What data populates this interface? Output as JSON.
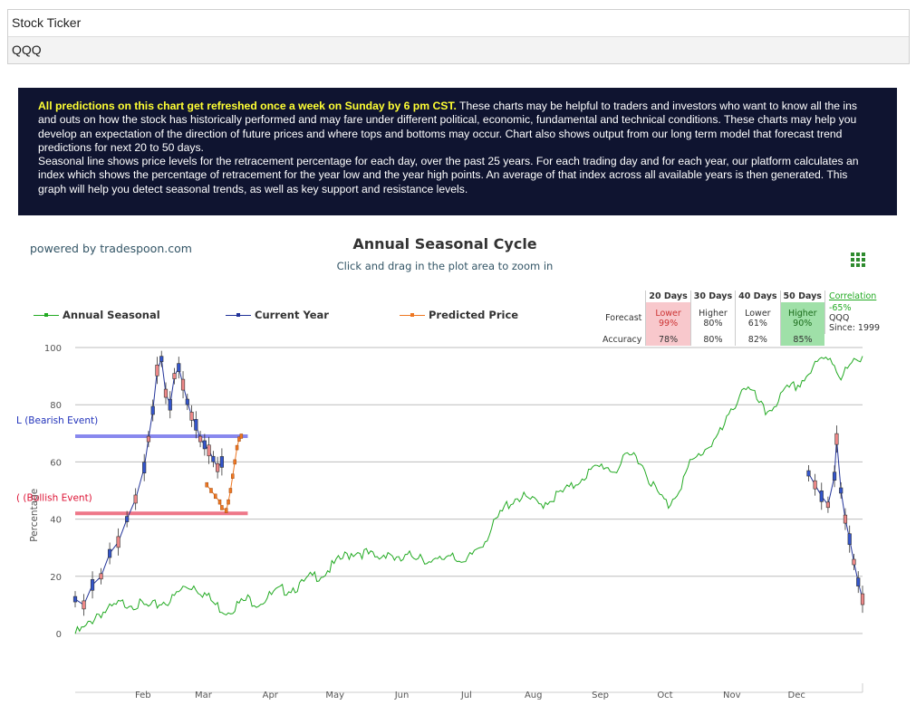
{
  "ticker": {
    "label": "Stock Ticker",
    "value": "QQQ"
  },
  "info": {
    "highlight": "All predictions on this chart get refreshed once a week on Sunday by 6 pm CST.",
    "text1": " These charts may be helpful to traders and investors who want to know all the ins and outs on how the stock has historically performed and may fare under different political, economic, fundamental and technical conditions. These charts may help you develop an expectation of the direction of future prices and where tops and bottoms may occur. Chart also shows output from our long term model that forecast trend predictions for next 20 to 50 days.",
    "text2": "Seasonal line shows price levels for the retracement percentage for each day, over the past 25 years. For each trading day and for each year, our platform calculates an index which shows the percentage of retracement for the year low and the year high points. An average of that index across all available years is then generated. This graph will help you detect seasonal trends, as well as key support and resistance levels."
  },
  "powered_by": "powered by tradespoon.com",
  "chart_data": {
    "type": "line",
    "title": "Annual Seasonal Cycle",
    "subtitle": "Click and drag in the plot area to zoom in",
    "ylabel": "Percentage",
    "ylim": [
      0,
      100
    ],
    "yticks": [
      0,
      20,
      40,
      60,
      80,
      100
    ],
    "xlim": [
      0,
      365
    ],
    "xticks": [
      {
        "label": "Feb",
        "day": 31
      },
      {
        "label": "Mar",
        "day": 59
      },
      {
        "label": "Apr",
        "day": 90
      },
      {
        "label": "May",
        "day": 120
      },
      {
        "label": "Jun",
        "day": 151
      },
      {
        "label": "Jul",
        "day": 181
      },
      {
        "label": "Aug",
        "day": 212
      },
      {
        "label": "Sep",
        "day": 243
      },
      {
        "label": "Oct",
        "day": 273
      },
      {
        "label": "Nov",
        "day": 304
      },
      {
        "label": "Dec",
        "day": 334
      }
    ],
    "legend": {
      "placement": "top",
      "items": [
        {
          "name": "Annual Seasonal",
          "color": "#22aa22"
        },
        {
          "name": "Current Year",
          "color": "#223399"
        },
        {
          "name": "Predicted Price",
          "color": "#ee7722"
        }
      ]
    },
    "plot_lines": [
      {
        "label": "L (Bearish Event)",
        "value": 69,
        "color": "#8888ee",
        "label_color": "#2233bb",
        "x_range": [
          0,
          80
        ]
      },
      {
        "label": "( (Bullish Event)",
        "value": 42,
        "color": "#ee7788",
        "label_color": "#dd1133",
        "x_range": [
          0,
          80
        ]
      }
    ],
    "series": [
      {
        "name": "Annual Seasonal",
        "color": "#22aa22",
        "points": [
          [
            0,
            1
          ],
          [
            5,
            3
          ],
          [
            10,
            8
          ],
          [
            15,
            9
          ],
          [
            20,
            11
          ],
          [
            25,
            12
          ],
          [
            30,
            11
          ],
          [
            35,
            10
          ],
          [
            40,
            12
          ],
          [
            45,
            13
          ],
          [
            50,
            17
          ],
          [
            55,
            18
          ],
          [
            60,
            15
          ],
          [
            65,
            11
          ],
          [
            70,
            9
          ],
          [
            75,
            11
          ],
          [
            80,
            13
          ],
          [
            85,
            12
          ],
          [
            90,
            14
          ],
          [
            95,
            16
          ],
          [
            100,
            17
          ],
          [
            105,
            18
          ],
          [
            110,
            21
          ],
          [
            115,
            22
          ],
          [
            120,
            25
          ],
          [
            125,
            28
          ],
          [
            130,
            30
          ],
          [
            135,
            29
          ],
          [
            140,
            27
          ],
          [
            145,
            30
          ],
          [
            150,
            26
          ],
          [
            155,
            28
          ],
          [
            160,
            29
          ],
          [
            165,
            25
          ],
          [
            170,
            27
          ],
          [
            175,
            30
          ],
          [
            180,
            24
          ],
          [
            185,
            30
          ],
          [
            190,
            34
          ],
          [
            195,
            40
          ],
          [
            200,
            46
          ],
          [
            205,
            49
          ],
          [
            210,
            48
          ],
          [
            215,
            46
          ],
          [
            220,
            48
          ],
          [
            225,
            50
          ],
          [
            230,
            52
          ],
          [
            235,
            56
          ],
          [
            240,
            58
          ],
          [
            245,
            60
          ],
          [
            250,
            58
          ],
          [
            255,
            62
          ],
          [
            260,
            64
          ],
          [
            265,
            57
          ],
          [
            270,
            50
          ],
          [
            275,
            46
          ],
          [
            280,
            52
          ],
          [
            285,
            60
          ],
          [
            290,
            64
          ],
          [
            295,
            68
          ],
          [
            300,
            72
          ],
          [
            305,
            80
          ],
          [
            310,
            88
          ],
          [
            315,
            84
          ],
          [
            320,
            78
          ],
          [
            325,
            82
          ],
          [
            330,
            86
          ],
          [
            335,
            88
          ],
          [
            340,
            92
          ],
          [
            345,
            96
          ],
          [
            350,
            98
          ],
          [
            355,
            91
          ],
          [
            360,
            95
          ],
          [
            365,
            97
          ]
        ]
      },
      {
        "name": "Current Year",
        "color": "#223399",
        "segments": [
          [
            [
              0,
              12
            ],
            [
              4,
              10
            ],
            [
              8,
              17
            ],
            [
              12,
              20
            ],
            [
              16,
              28
            ],
            [
              20,
              32
            ],
            [
              24,
              40
            ],
            [
              28,
              47
            ],
            [
              32,
              58
            ],
            [
              34,
              68
            ],
            [
              36,
              78
            ],
            [
              38,
              92
            ],
            [
              40,
              96
            ],
            [
              42,
              84
            ],
            [
              44,
              80
            ],
            [
              46,
              90
            ],
            [
              48,
              93
            ],
            [
              50,
              87
            ],
            [
              52,
              81
            ],
            [
              54,
              76
            ],
            [
              56,
              73
            ],
            [
              58,
              68
            ],
            [
              60,
              66
            ],
            [
              62,
              64
            ],
            [
              64,
              61
            ],
            [
              66,
              58
            ],
            [
              68,
              60
            ]
          ],
          [
            [
              340,
              56
            ],
            [
              343,
              52
            ],
            [
              346,
              48
            ],
            [
              349,
              45
            ],
            [
              352,
              55
            ],
            [
              353,
              68
            ],
            [
              355,
              50
            ],
            [
              357,
              40
            ],
            [
              359,
              33
            ],
            [
              361,
              25
            ],
            [
              363,
              18
            ],
            [
              365,
              12
            ]
          ]
        ]
      },
      {
        "name": "Predicted Price",
        "color": "#ee7722",
        "points": [
          [
            61,
            52
          ],
          [
            63,
            50
          ],
          [
            65,
            48
          ],
          [
            67,
            46
          ],
          [
            68,
            44
          ],
          [
            70,
            43
          ],
          [
            71,
            46
          ],
          [
            72,
            50
          ],
          [
            73,
            55
          ],
          [
            74,
            60
          ],
          [
            75,
            65
          ],
          [
            76,
            68
          ],
          [
            77,
            69
          ]
        ]
      }
    ]
  },
  "forecast_table": {
    "headers": [
      "20 Days",
      "30 Days",
      "40 Days",
      "50 Days"
    ],
    "correlation_label": "Correlation",
    "correlation_value": "-65%",
    "symbol": "QQQ",
    "since": "Since: 1999",
    "forecast_label": "Forecast",
    "accuracy_label": "Accuracy",
    "forecast": [
      {
        "dir": "Lower",
        "pct": "99%"
      },
      {
        "dir": "Higher",
        "pct": "80%"
      },
      {
        "dir": "Lower",
        "pct": "61%"
      },
      {
        "dir": "Higher",
        "pct": "90%"
      }
    ],
    "accuracy": [
      "78%",
      "80%",
      "82%",
      "85%"
    ]
  },
  "colors": {
    "info_bg": "#0f1430",
    "highlight": "#ffff33",
    "accent_green": "#22aa22"
  },
  "icons": {
    "menu": "grid-menu-icon"
  }
}
